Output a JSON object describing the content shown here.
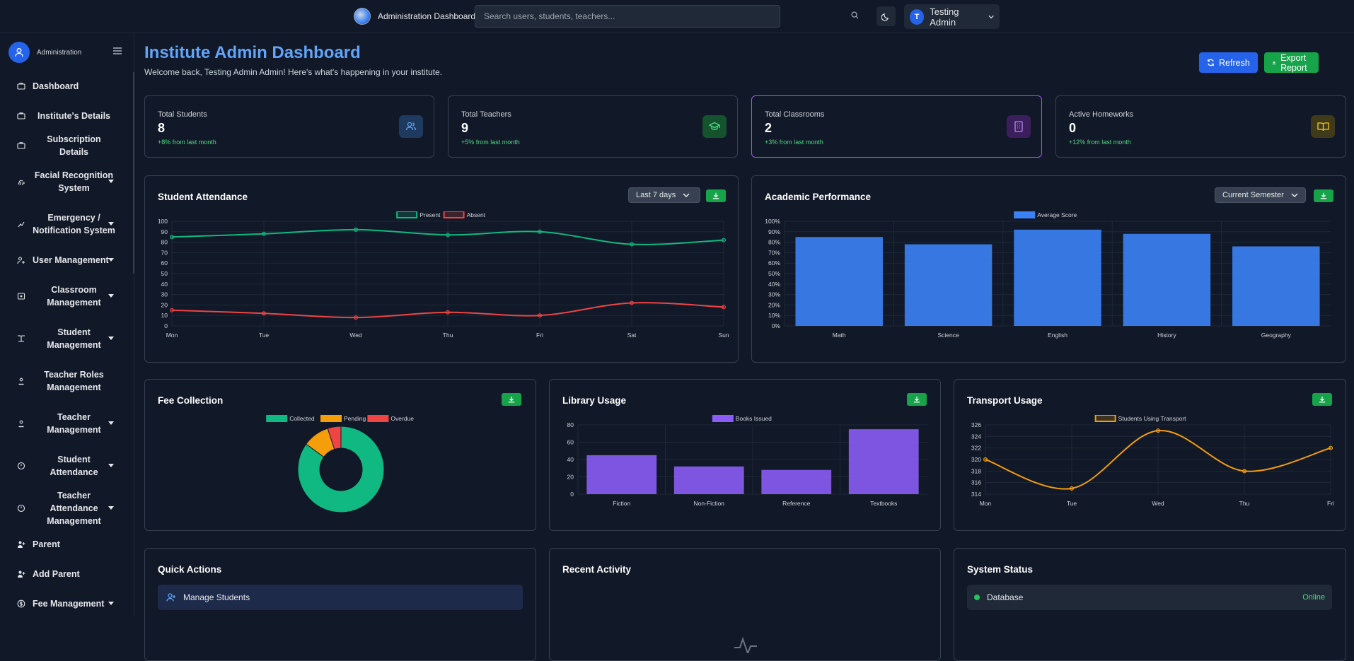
{
  "topbar": {
    "app_title": "Administration Dashboard",
    "search_placeholder": "Search users, students, teachers...",
    "user_initial": "T",
    "user_name": "Testing Admin"
  },
  "sidebar": {
    "title": "Administration",
    "items": [
      {
        "label": "Dashboard",
        "icon": "briefcase-icon",
        "dropdown": false
      },
      {
        "label": "Institute's Details",
        "icon": "briefcase-icon",
        "dropdown": false
      },
      {
        "label": "Subscription Details",
        "icon": "briefcase-icon",
        "dropdown": false
      },
      {
        "label": "Facial Recognition System",
        "icon": "fingerprint-icon",
        "dropdown": true
      },
      {
        "label": "Emergency / Notification System",
        "icon": "alert-icon",
        "dropdown": true
      },
      {
        "label": "User Management",
        "icon": "users-cog-icon",
        "dropdown": true
      },
      {
        "label": "Classroom Management",
        "icon": "classroom-icon",
        "dropdown": true
      },
      {
        "label": "Student Management",
        "icon": "book-icon",
        "dropdown": true
      },
      {
        "label": "Teacher Roles Management",
        "icon": "teacher-icon",
        "dropdown": false
      },
      {
        "label": "Teacher Management",
        "icon": "teacher-icon",
        "dropdown": true
      },
      {
        "label": "Student Attendance",
        "icon": "clock-icon",
        "dropdown": true
      },
      {
        "label": "Teacher Attendance Management",
        "icon": "clock-icon",
        "dropdown": true
      },
      {
        "label": "Parent",
        "icon": "user-plus-icon",
        "dropdown": false
      },
      {
        "label": "Add Parent",
        "icon": "user-plus-icon",
        "dropdown": false
      },
      {
        "label": "Fee Management",
        "icon": "dollar-icon",
        "dropdown": true
      }
    ]
  },
  "header": {
    "title": "Institute Admin Dashboard",
    "subtitle": "Welcome back, Testing Admin Admin! Here's what's happening in your institute.",
    "refresh_label": "Refresh",
    "export_label": "Export Report"
  },
  "stats": [
    {
      "label": "Total Students",
      "value": "8",
      "change": "+8% from last month",
      "icon": "users-icon",
      "color": "#3b82f6"
    },
    {
      "label": "Total Teachers",
      "value": "9",
      "change": "+5% from last month",
      "icon": "graduation-cap-icon",
      "color": "#22c55e"
    },
    {
      "label": "Total Classrooms",
      "value": "2",
      "change": "+3% from last month",
      "icon": "building-icon",
      "color": "#a855f7"
    },
    {
      "label": "Active Homeworks",
      "value": "0",
      "change": "+12% from last month",
      "icon": "book-open-icon",
      "color": "#eab308"
    }
  ],
  "cards": {
    "attendance_title": "Student Attendance",
    "attendance_range": "Last 7 days",
    "performance_title": "Academic Performance",
    "performance_range": "Current Semester",
    "fee_title": "Fee Collection",
    "library_title": "Library Usage",
    "transport_title": "Transport Usage",
    "quick_actions_title": "Quick Actions",
    "quick_action_1": "Manage Students",
    "recent_activity_title": "Recent Activity",
    "system_status_title": "System Status",
    "system_row_1": "Database",
    "system_row_1_status": "Online"
  },
  "chart_data": [
    {
      "type": "line",
      "categories": [
        "Mon",
        "Tue",
        "Wed",
        "Thu",
        "Fri",
        "Sat",
        "Sun"
      ],
      "series": [
        {
          "name": "Present",
          "values": [
            85,
            88,
            92,
            87,
            90,
            78,
            82
          ],
          "color": "#10b981"
        },
        {
          "name": "Absent",
          "values": [
            15,
            12,
            8,
            13,
            10,
            22,
            18
          ],
          "color": "#ef4444"
        }
      ],
      "ylim": [
        0,
        100
      ],
      "yticks": [
        "100",
        "90",
        "80",
        "70",
        "60",
        "50",
        "40",
        "30",
        "20",
        "10",
        "0"
      ],
      "legend": "top"
    },
    {
      "type": "bar",
      "categories": [
        "Math",
        "Science",
        "English",
        "History",
        "Geography"
      ],
      "series": [
        {
          "name": "Average Score",
          "values": [
            85,
            78,
            92,
            88,
            76
          ],
          "color": "#3b82f6"
        }
      ],
      "ylim": [
        0,
        100
      ],
      "yticks": [
        "100%",
        "90%",
        "80%",
        "70%",
        "60%",
        "50%",
        "40%",
        "30%",
        "20%",
        "10%",
        "0%"
      ],
      "legend": "top"
    },
    {
      "type": "pie",
      "labels": [
        "Collected",
        "Pending",
        "Overdue"
      ],
      "values": [
        85,
        10,
        5
      ],
      "colors": [
        "#10b981",
        "#f59e0b",
        "#ef4444"
      ],
      "legend": "top"
    },
    {
      "type": "bar",
      "categories": [
        "Fiction",
        "Non-Fiction",
        "Reference",
        "Textbooks"
      ],
      "series": [
        {
          "name": "Books Issued",
          "values": [
            45,
            32,
            28,
            75
          ],
          "color": "#8b5cf6"
        }
      ],
      "ylim": [
        0,
        80
      ],
      "yticks": [
        "80",
        "60",
        "40",
        "20",
        "0"
      ],
      "legend": "top"
    },
    {
      "type": "line",
      "categories": [
        "Mon",
        "Tue",
        "Wed",
        "Thu",
        "Fri"
      ],
      "series": [
        {
          "name": "Students Using Transport",
          "values": [
            320,
            315,
            325,
            318,
            322
          ],
          "color": "#f59e0b"
        }
      ],
      "ylim": [
        314,
        326
      ],
      "yticks": [
        "326",
        "324",
        "322",
        "320",
        "318",
        "316",
        "314"
      ],
      "legend": "top"
    }
  ]
}
